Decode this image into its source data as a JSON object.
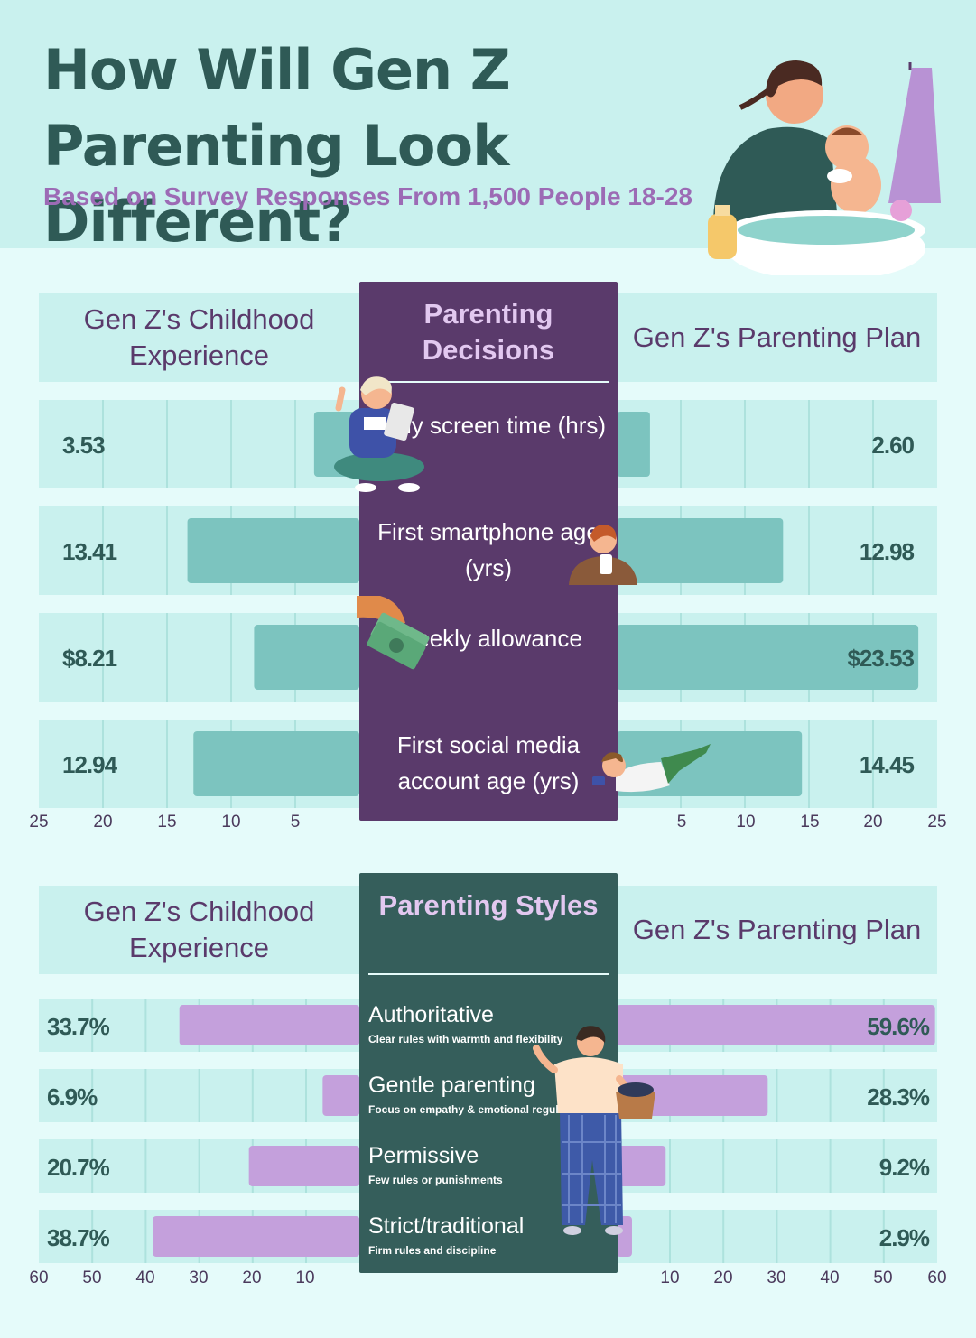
{
  "header": {
    "title": "How Will Gen Z Parenting Look Different?",
    "subtitle": "Based on Survey Responses From 1,500 People 18-28"
  },
  "colors": {
    "teal_bar": "#7cc4bf",
    "purple_bar": "#c4a0dc",
    "decisions_panel": "#5a3a6b",
    "styles_panel": "#355e5b"
  },
  "chart_data": [
    {
      "type": "bar",
      "orientation": "horizontal-diverging",
      "center_title": "Parenting Decisions",
      "left_heading": "Gen Z's Childhood Experience",
      "right_heading": "Gen Z's Parenting Plan",
      "left_ticks": [
        "25",
        "20",
        "15",
        "10",
        "5"
      ],
      "right_ticks": [
        "5",
        "10",
        "15",
        "20",
        "25"
      ],
      "xlim": [
        0,
        25
      ],
      "categories": [
        "Daily screen time (hrs)",
        "First smartphone age (yrs)",
        "Weekly allowance",
        "First social media account age (yrs)"
      ],
      "series": [
        {
          "name": "Gen Z's Childhood Experience",
          "values": [
            3.53,
            13.41,
            8.21,
            12.94
          ],
          "labels": [
            "3.53",
            "13.41",
            "$8.21",
            "12.94"
          ]
        },
        {
          "name": "Gen Z's Parenting Plan",
          "values": [
            2.6,
            12.98,
            23.53,
            14.45
          ],
          "labels": [
            "2.60",
            "12.98",
            "$23.53",
            "14.45"
          ]
        }
      ]
    },
    {
      "type": "bar",
      "orientation": "horizontal-diverging",
      "center_title": "Parenting Styles",
      "left_heading": "Gen Z's Childhood Experience",
      "right_heading": "Gen Z's Parenting Plan",
      "left_ticks": [
        "60",
        "50",
        "40",
        "30",
        "20",
        "10"
      ],
      "right_ticks": [
        "10",
        "20",
        "30",
        "40",
        "50",
        "60"
      ],
      "xlim": [
        0,
        60
      ],
      "categories": [
        "Authoritative",
        "Gentle parenting",
        "Permissive",
        "Strict/traditional"
      ],
      "descriptions": [
        "Clear rules with warmth and flexibility",
        "Focus on empathy & emotional regulation",
        "Few rules or punishments",
        "Firm rules and discipline"
      ],
      "series": [
        {
          "name": "Gen Z's Childhood Experience",
          "values": [
            33.7,
            6.9,
            20.7,
            38.7
          ],
          "labels": [
            "33.7%",
            "6.9%",
            "20.7%",
            "38.7%"
          ]
        },
        {
          "name": "Gen Z's Parenting Plan",
          "values": [
            59.6,
            28.3,
            9.2,
            2.9
          ],
          "labels": [
            "59.6%",
            "28.3%",
            "9.2%",
            "2.9%"
          ]
        }
      ]
    }
  ]
}
